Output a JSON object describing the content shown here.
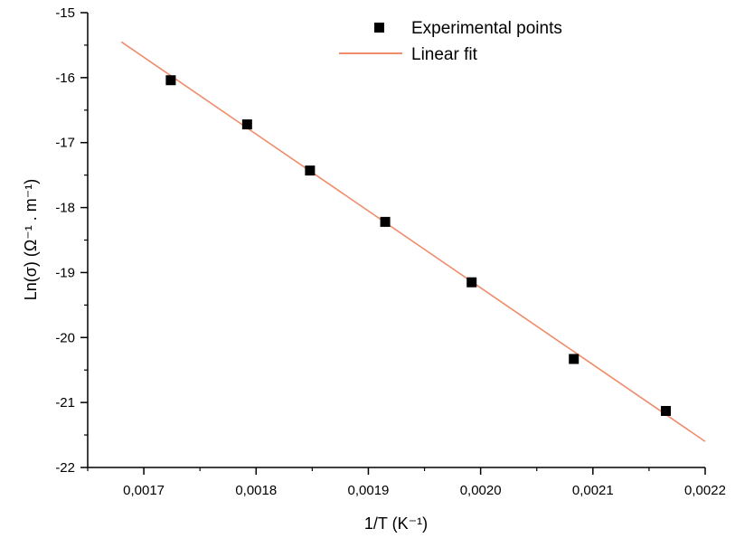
{
  "chart_data": {
    "type": "scatter",
    "xlabel": "1/T (K⁻¹)",
    "ylabel": "Ln(σ) (Ω⁻¹ . m⁻¹)",
    "xlim": [
      0.00165,
      0.0022
    ],
    "ylim": [
      -22,
      -15
    ],
    "x_ticks": [
      0.0017,
      0.0018,
      0.0019,
      0.002,
      0.0021,
      0.0022
    ],
    "x_tick_labels": [
      "0,0017",
      "0,0018",
      "0,0019",
      "0,0020",
      "0,0021",
      "0,0022"
    ],
    "y_ticks": [
      -15,
      -16,
      -17,
      -18,
      -19,
      -20,
      -21,
      -22
    ],
    "y_tick_labels": [
      "-15",
      "-16",
      "-17",
      "-18",
      "-19",
      "-20",
      "-21",
      "-22"
    ],
    "grid": false,
    "legend_position": "top-right",
    "series": [
      {
        "name": "Experimental points",
        "kind": "scatter",
        "marker": "square",
        "color": "#000000",
        "x": [
          0.001724,
          0.001792,
          0.001848,
          0.001915,
          0.001992,
          0.002083,
          0.002165
        ],
        "y": [
          -16.04,
          -16.72,
          -17.43,
          -18.22,
          -19.15,
          -20.33,
          -21.13
        ]
      },
      {
        "name": "Linear fit",
        "kind": "line",
        "color": "#f08c6c",
        "x": [
          0.00168,
          0.0022
        ],
        "y": [
          -15.45,
          -21.6
        ]
      }
    ]
  }
}
